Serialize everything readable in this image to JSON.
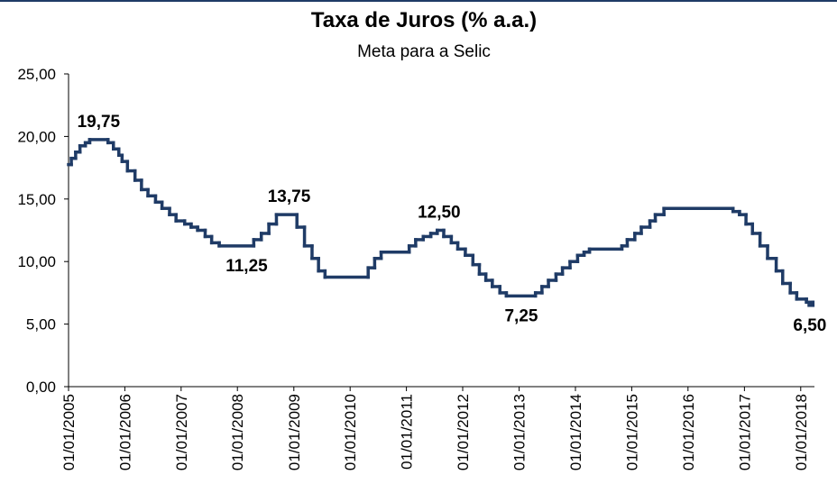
{
  "chart_data": {
    "type": "line",
    "title": "Taxa de Juros (% a.a.)",
    "subtitle": "Meta para a Selic",
    "x": [
      "2005-01-01",
      "2005-01-19",
      "2005-02-16",
      "2005-03-16",
      "2005-04-20",
      "2005-05-18",
      "2005-09-14",
      "2005-10-19",
      "2005-11-23",
      "2005-12-14",
      "2006-01-18",
      "2006-03-08",
      "2006-04-19",
      "2006-05-31",
      "2006-07-19",
      "2006-08-30",
      "2006-10-18",
      "2006-11-29",
      "2007-01-24",
      "2007-03-07",
      "2007-04-18",
      "2007-06-06",
      "2007-07-18",
      "2007-09-05",
      "2008-04-16",
      "2008-06-04",
      "2008-07-23",
      "2008-09-10",
      "2009-01-21",
      "2009-03-11",
      "2009-04-29",
      "2009-06-10",
      "2009-07-22",
      "2010-04-28",
      "2010-06-09",
      "2010-07-21",
      "2011-01-19",
      "2011-03-02",
      "2011-04-20",
      "2011-06-08",
      "2011-07-20",
      "2011-08-31",
      "2011-10-19",
      "2011-11-30",
      "2012-01-18",
      "2012-03-07",
      "2012-04-18",
      "2012-05-30",
      "2012-07-11",
      "2012-08-29",
      "2012-10-10",
      "2013-04-17",
      "2013-05-29",
      "2013-07-10",
      "2013-08-28",
      "2013-10-09",
      "2013-11-27",
      "2014-01-15",
      "2014-02-26",
      "2014-04-02",
      "2014-10-29",
      "2014-12-03",
      "2015-01-21",
      "2015-03-04",
      "2015-04-29",
      "2015-06-03",
      "2015-07-29",
      "2016-10-19",
      "2016-11-30",
      "2017-01-11",
      "2017-02-22",
      "2017-04-12",
      "2017-05-31",
      "2017-07-26",
      "2017-09-06",
      "2017-10-25",
      "2017-12-06",
      "2018-02-07",
      "2018-03-21"
    ],
    "series": [
      {
        "name": "Meta para a Selic",
        "color": "#1f3b66",
        "values": [
          17.75,
          18.25,
          18.75,
          19.25,
          19.5,
          19.75,
          19.5,
          19.0,
          18.5,
          18.0,
          17.25,
          16.5,
          15.75,
          15.25,
          14.75,
          14.25,
          13.75,
          13.25,
          13.0,
          12.75,
          12.5,
          12.0,
          11.5,
          11.25,
          11.75,
          12.25,
          13.0,
          13.75,
          12.75,
          11.25,
          10.25,
          9.25,
          8.75,
          9.5,
          10.25,
          10.75,
          11.25,
          11.75,
          12.0,
          12.25,
          12.5,
          12.0,
          11.5,
          11.0,
          10.5,
          9.75,
          9.0,
          8.5,
          8.0,
          7.5,
          7.25,
          7.5,
          8.0,
          8.5,
          9.0,
          9.5,
          10.0,
          10.5,
          10.75,
          11.0,
          11.25,
          11.75,
          12.25,
          12.75,
          13.25,
          13.75,
          14.25,
          14.0,
          13.75,
          13.0,
          12.25,
          11.25,
          10.25,
          9.25,
          8.25,
          7.5,
          7.0,
          6.75,
          6.5
        ]
      }
    ],
    "xlim": [
      "2005-01-01",
      "2018-03-31"
    ],
    "xticks": [
      {
        "value": "2005-01-01",
        "label": "01/01/2005"
      },
      {
        "value": "2006-01-01",
        "label": "01/01/2006"
      },
      {
        "value": "2007-01-01",
        "label": "01/01/2007"
      },
      {
        "value": "2008-01-01",
        "label": "01/01/2008"
      },
      {
        "value": "2009-01-01",
        "label": "01/01/2009"
      },
      {
        "value": "2010-01-01",
        "label": "01/01/2010"
      },
      {
        "value": "2011-01-01",
        "label": "01/01/2011"
      },
      {
        "value": "2012-01-01",
        "label": "01/01/2012"
      },
      {
        "value": "2013-01-01",
        "label": "01/01/2013"
      },
      {
        "value": "2014-01-01",
        "label": "01/01/2014"
      },
      {
        "value": "2015-01-01",
        "label": "01/01/2015"
      },
      {
        "value": "2016-01-01",
        "label": "01/01/2016"
      },
      {
        "value": "2017-01-01",
        "label": "01/01/2017"
      },
      {
        "value": "2018-01-01",
        "label": "01/01/2018"
      }
    ],
    "ylim": [
      0,
      25
    ],
    "yticks": [
      {
        "value": 0,
        "label": "0,00"
      },
      {
        "value": 5,
        "label": "5,00"
      },
      {
        "value": 10,
        "label": "10,00"
      },
      {
        "value": 15,
        "label": "15,00"
      },
      {
        "value": 20,
        "label": "20,00"
      },
      {
        "value": 25,
        "label": "25,00"
      }
    ],
    "annotations": [
      {
        "label": "19,75",
        "x": "2005-07-15",
        "value": 19.75
      },
      {
        "label": "11,25",
        "x": "2008-03-01",
        "value": 11.25
      },
      {
        "label": "13,75",
        "x": "2008-12-01",
        "value": 13.75
      },
      {
        "label": "12,50",
        "x": "2011-08-01",
        "value": 12.5
      },
      {
        "label": "7,25",
        "x": "2013-01-15",
        "value": 7.25
      },
      {
        "label": "6,50",
        "x": "2018-03-01",
        "value": 6.5
      }
    ]
  }
}
